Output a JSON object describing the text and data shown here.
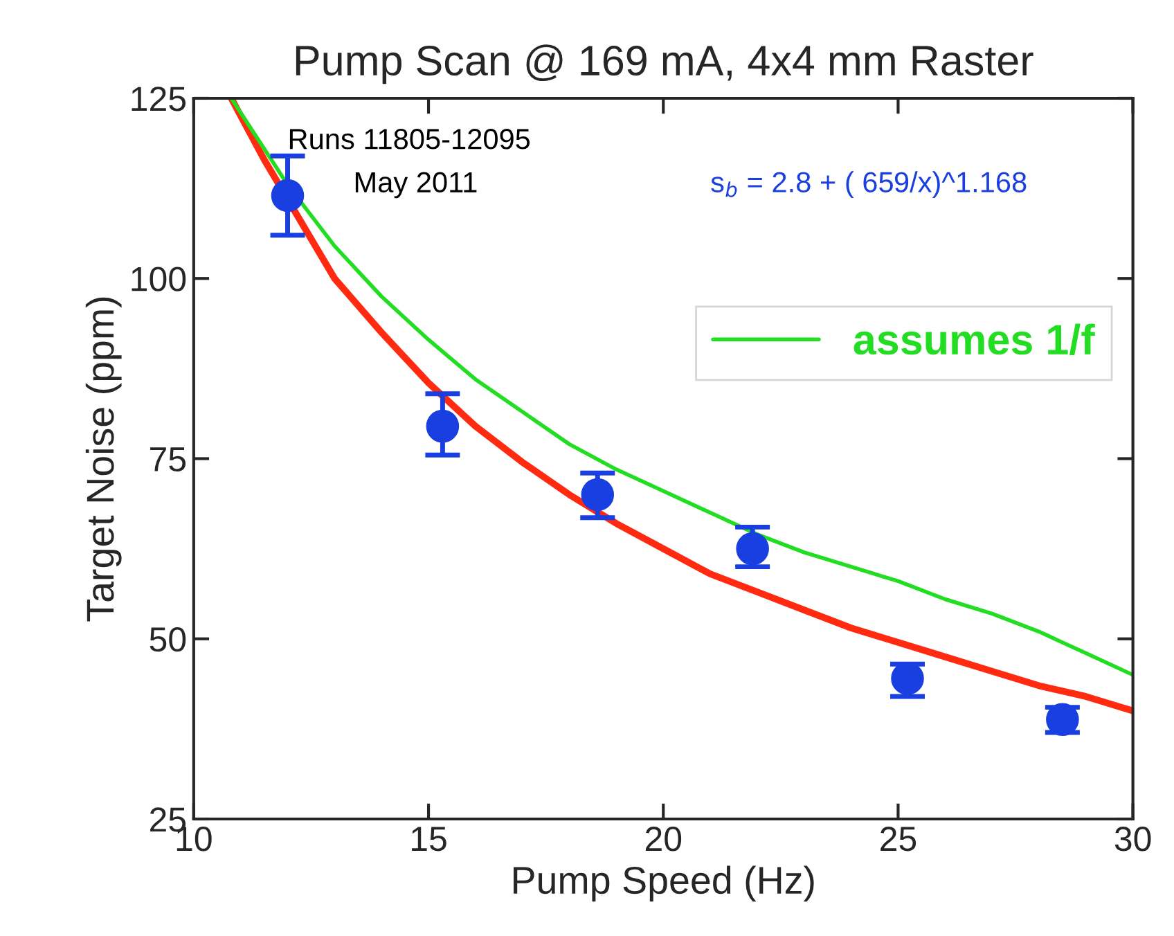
{
  "chart_data": {
    "type": "scatter",
    "title": "Pump Scan @ 169 mA, 4x4 mm Raster",
    "xlabel": "Pump Speed (Hz)",
    "ylabel": "Target Noise (ppm)",
    "xlim": [
      10,
      30
    ],
    "xticks": [
      10,
      15,
      20,
      25,
      30
    ],
    "ylim": [
      25,
      125
    ],
    "yticks": [
      25,
      50,
      75,
      100,
      125
    ],
    "grid": false,
    "legend": "right",
    "annotations": [
      "Runs 11805-12095",
      "May 2011",
      "s$_{b}$ = 2.8 + ( 659/x)^1.168"
    ],
    "series": [
      {
        "color": "#1a3fe0",
        "marker": "circle",
        "x": [
          12.0,
          15.3,
          18.6,
          21.9,
          25.2,
          28.5
        ],
        "values": [
          111.5,
          79.5,
          70.0,
          62.5,
          44.5,
          38.8
        ],
        "errors": [
          [
            106,
            117
          ],
          [
            75.5,
            84
          ],
          [
            66.8,
            73
          ],
          [
            60,
            65.5
          ],
          [
            42,
            46.5
          ],
          [
            37,
            40.5
          ]
        ]
      },
      {
        "type": "line",
        "color": "#ff2a10",
        "x": [
          10.8,
          11.5,
          13,
          14,
          15,
          16,
          17,
          18,
          19,
          20,
          21,
          22,
          23,
          24,
          25,
          26,
          27,
          28,
          29,
          30
        ],
        "values": [
          125,
          116.5,
          100,
          92.5,
          85.5,
          79.5,
          74.5,
          70,
          66,
          62.5,
          59,
          56.5,
          54,
          51.5,
          49.5,
          47.5,
          45.5,
          43.5,
          42,
          40
        ]
      },
      {
        "type": "line",
        "name": "assumes 1/f",
        "color": "#22dd22",
        "x": [
          10.8,
          11.5,
          12,
          13,
          14,
          15,
          16,
          17,
          18,
          19,
          20,
          21,
          22,
          23,
          24,
          25,
          26,
          27,
          28,
          29,
          30
        ],
        "values": [
          125,
          118,
          113,
          104.5,
          97.5,
          91.5,
          86,
          81.5,
          77,
          73.5,
          70.5,
          67.5,
          64.5,
          62,
          60,
          58,
          55.5,
          53.5,
          51,
          48,
          45
        ]
      }
    ]
  }
}
